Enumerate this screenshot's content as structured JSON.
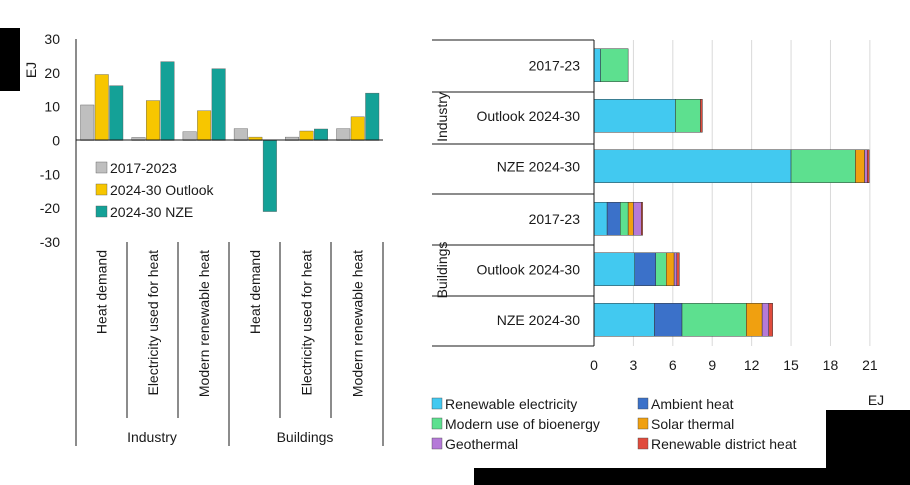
{
  "colors": {
    "gray": "#bfbfbf",
    "yellow": "#f7c600",
    "teal": "#14a197",
    "renewable_electricity": "#42c9f0",
    "ambient_heat": "#3b71c9",
    "bioenergy": "#5de08f",
    "solar_thermal": "#f0a010",
    "geothermal": "#b57ad8",
    "district_heat": "#e04b3c",
    "axis": "#1a1a1a",
    "grid": "#d9d9d9",
    "redaction": "#000000"
  },
  "chart_data": [
    {
      "type": "bar",
      "ylabel": "EJ",
      "ylim": [
        -30,
        30
      ],
      "yticks": [
        30,
        20,
        10,
        0,
        -10,
        -20,
        -30
      ],
      "categories": [
        "Heat demand",
        "Electricity used for heat",
        "Modern renewable heat",
        "Heat demand",
        "Electricity used for heat",
        "Modern renewable heat"
      ],
      "groups": [
        "Industry",
        "Buildings"
      ],
      "series": [
        {
          "name": "2017-2023",
          "color_key": "gray",
          "values": [
            10.5,
            0.9,
            2.6,
            3.5,
            1.0,
            3.5
          ]
        },
        {
          "name": "2024-30 Outlook",
          "color_key": "yellow",
          "values": [
            19.5,
            11.8,
            8.8,
            1.0,
            2.8,
            7.0
          ]
        },
        {
          "name": "2024-30 NZE",
          "color_key": "teal",
          "values": [
            16.2,
            23.3,
            21.2,
            -21.0,
            3.4,
            14.0
          ]
        }
      ],
      "legend": [
        {
          "label": "2017-2023",
          "color_key": "gray"
        },
        {
          "label": "2024-30 Outlook",
          "color_key": "yellow"
        },
        {
          "label": "2024-30 NZE",
          "color_key": "teal"
        }
      ]
    },
    {
      "type": "bar",
      "orientation": "horizontal",
      "stacked": true,
      "xlabel": "EJ",
      "xlim": [
        0,
        22
      ],
      "xticks": [
        0,
        3,
        6,
        9,
        12,
        15,
        18,
        21
      ],
      "categories": [
        "2017-23",
        "Outlook 2024-30",
        "NZE 2024-30",
        "2017-23",
        "Outlook 2024-30",
        "NZE 2024-30"
      ],
      "groups": [
        "Industry",
        "Buildings"
      ],
      "series": [
        {
          "name": "Renewable electricity",
          "color_key": "renewable_electricity",
          "values": [
            0.5,
            6.2,
            15.0,
            1.0,
            3.1,
            4.6
          ]
        },
        {
          "name": "Ambient heat",
          "color_key": "ambient_heat",
          "values": [
            0,
            0,
            0,
            1.0,
            1.6,
            2.1
          ]
        },
        {
          "name": "Modern use of bioenergy",
          "color_key": "bioenergy",
          "values": [
            2.1,
            1.9,
            4.9,
            0.6,
            0.8,
            4.9
          ]
        },
        {
          "name": "Solar thermal",
          "color_key": "solar_thermal",
          "values": [
            0,
            0,
            0.7,
            0.4,
            0.6,
            1.2
          ]
        },
        {
          "name": "Geothermal",
          "color_key": "geothermal",
          "values": [
            0,
            0,
            0.2,
            0.6,
            0.2,
            0.5
          ]
        },
        {
          "name": "Renewable district heat",
          "color_key": "district_heat",
          "values": [
            0,
            0.15,
            0.15,
            0.1,
            0.2,
            0.3
          ]
        }
      ]
    }
  ]
}
